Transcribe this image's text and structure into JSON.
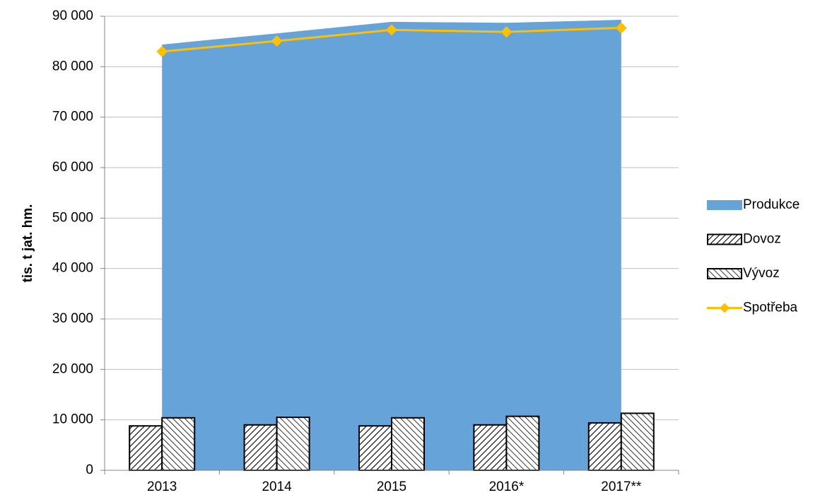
{
  "chart_data": {
    "type": "combo",
    "y_label": "tis. t jat. hm.",
    "categories": [
      "2013",
      "2014",
      "2015",
      "2016*",
      "2017**"
    ],
    "series": [
      {
        "name": "Produkce",
        "type": "area",
        "color": "#65a3d9",
        "values": [
          84400,
          86600,
          88900,
          88700,
          89300
        ]
      },
      {
        "name": "Dovoz",
        "type": "bar",
        "color": "#000000",
        "values": [
          8800,
          9000,
          8800,
          9000,
          9400
        ]
      },
      {
        "name": "Vývoz",
        "type": "bar",
        "color": "#000000",
        "values": [
          10400,
          10500,
          10400,
          10700,
          11300
        ]
      },
      {
        "name": "Spotřeba",
        "type": "line",
        "color": "#ffc000",
        "values": [
          83000,
          85100,
          87300,
          86900,
          87700
        ]
      }
    ],
    "ylim": [
      0,
      90000
    ],
    "yticks": [
      0,
      {
        "value": 10000,
        "label": "10 000"
      },
      {
        "value": 20000,
        "label": "20 000"
      },
      {
        "value": 30000,
        "label": "30 000"
      },
      {
        "value": 40000,
        "label": "40 000"
      },
      {
        "value": 50000,
        "label": "50 000"
      },
      {
        "value": 60000,
        "label": "60 000"
      },
      {
        "value": 70000,
        "label": "70 000"
      },
      {
        "value": 80000,
        "label": "80 000"
      },
      {
        "value": 90000,
        "label": "90 000"
      }
    ],
    "grid": true,
    "legend": "right"
  }
}
